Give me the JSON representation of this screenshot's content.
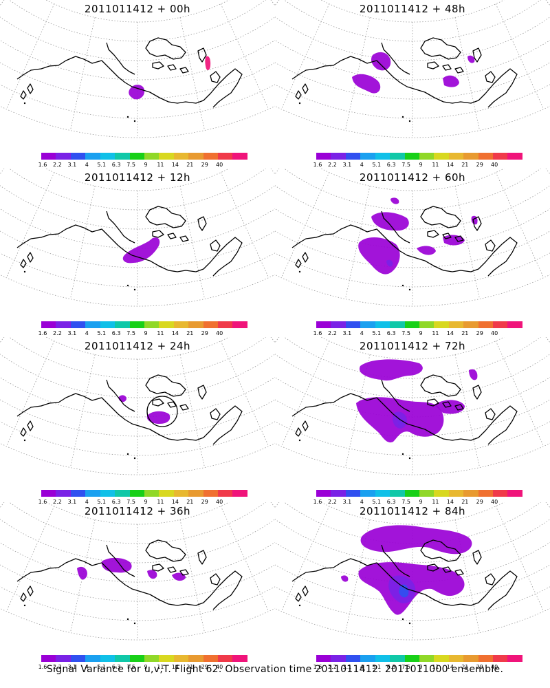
{
  "colorscale": {
    "colors": [
      "#9a00d6",
      "#7a22e6",
      "#3050f0",
      "#1aa0f0",
      "#10c0e8",
      "#10c8a8",
      "#18d018",
      "#90d828",
      "#d8d820",
      "#e8b830",
      "#e89a30",
      "#f07030",
      "#f03a4a",
      "#f0147a"
    ],
    "labels": [
      "1.6",
      "2.2",
      "3.1",
      "4",
      "5.1",
      "6.3",
      "7.5",
      "9",
      "11",
      "14",
      "21",
      "29",
      "40"
    ]
  },
  "panels": [
    {
      "id": "p00",
      "title": "2011011412 + 00h"
    },
    {
      "id": "p48",
      "title": "2011011412 + 48h"
    },
    {
      "id": "p12",
      "title": "2011011412 + 12h"
    },
    {
      "id": "p60",
      "title": "2011011412 + 60h"
    },
    {
      "id": "p24",
      "title": "2011011412 + 24h"
    },
    {
      "id": "p72",
      "title": "2011011412 + 72h"
    },
    {
      "id": "p36",
      "title": "2011011412 + 36h"
    },
    {
      "id": "p84",
      "title": "2011011412 + 84h"
    }
  ],
  "footer": "Signal Variance for u,v,T. Flight 62. Observation time 2011011412. 2011011000 ensemble."
}
